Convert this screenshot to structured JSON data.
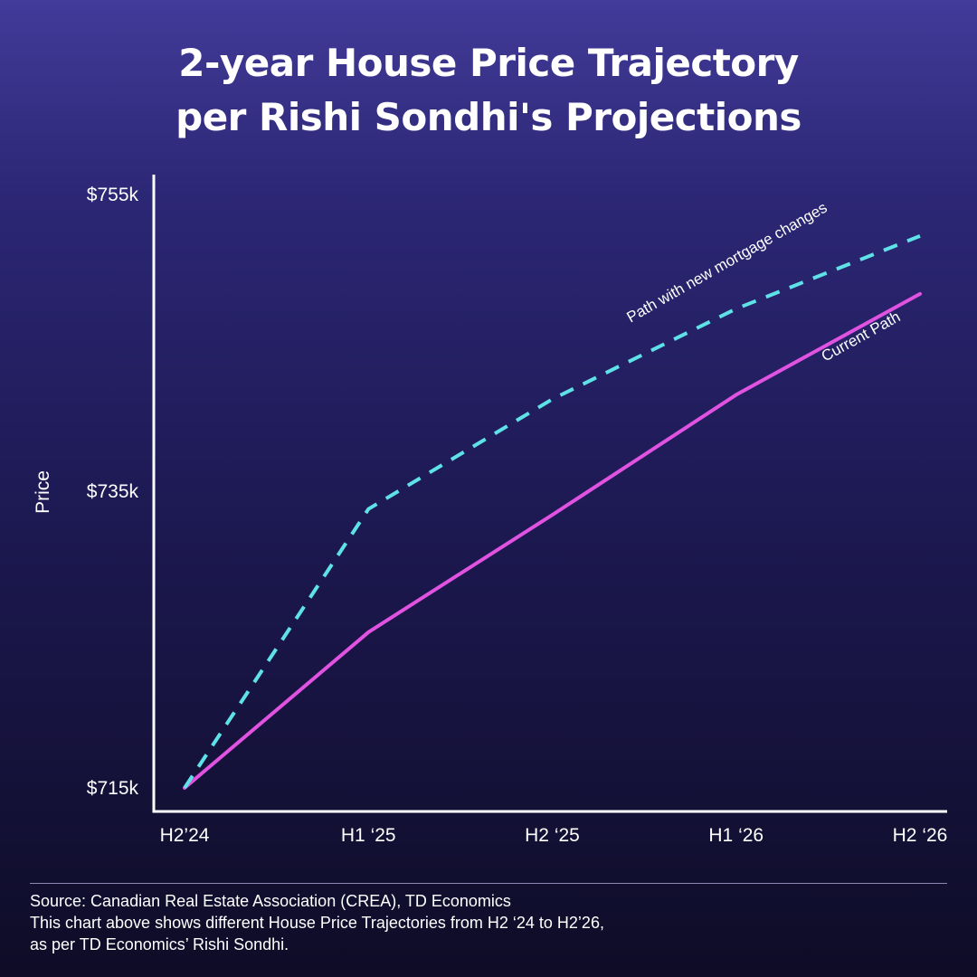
{
  "title": {
    "line1": "2-year House Price Trajectory",
    "line2": "per Rishi Sondhi's Projections"
  },
  "chart_data": {
    "type": "line",
    "title": "2-year House Price Trajectory per Rishi Sondhi's Projections",
    "xlabel": "",
    "ylabel": "Price",
    "categories": [
      "H2’24",
      "H1 ‘25",
      "H2 ‘25",
      "H1 ‘26",
      "H2 ‘26"
    ],
    "y_ticks": [
      {
        "value": 715,
        "label": "$715k"
      },
      {
        "value": 735,
        "label": "$735k"
      },
      {
        "value": 755,
        "label": "$755k"
      }
    ],
    "ylim": [
      715,
      755
    ],
    "grid": false,
    "series": [
      {
        "name": "Path with new mortgage changes",
        "values": [
          715,
          733.8,
          741.2,
          747.3,
          752.2
        ],
        "color": "#5ee2e8",
        "style": "dashed"
      },
      {
        "name": "Current Path",
        "values": [
          715,
          725.5,
          733.4,
          741.5,
          748.3
        ],
        "color": "#e052e0",
        "style": "solid"
      }
    ]
  },
  "footer": {
    "source": "Source: Canadian Real Estate Association (CREA), TD Economics",
    "line2": "This chart above shows different House Price Trajectories from H2 ‘24 to H2’26,",
    "line3": "as per TD Economics’ Rishi Sondhi."
  }
}
